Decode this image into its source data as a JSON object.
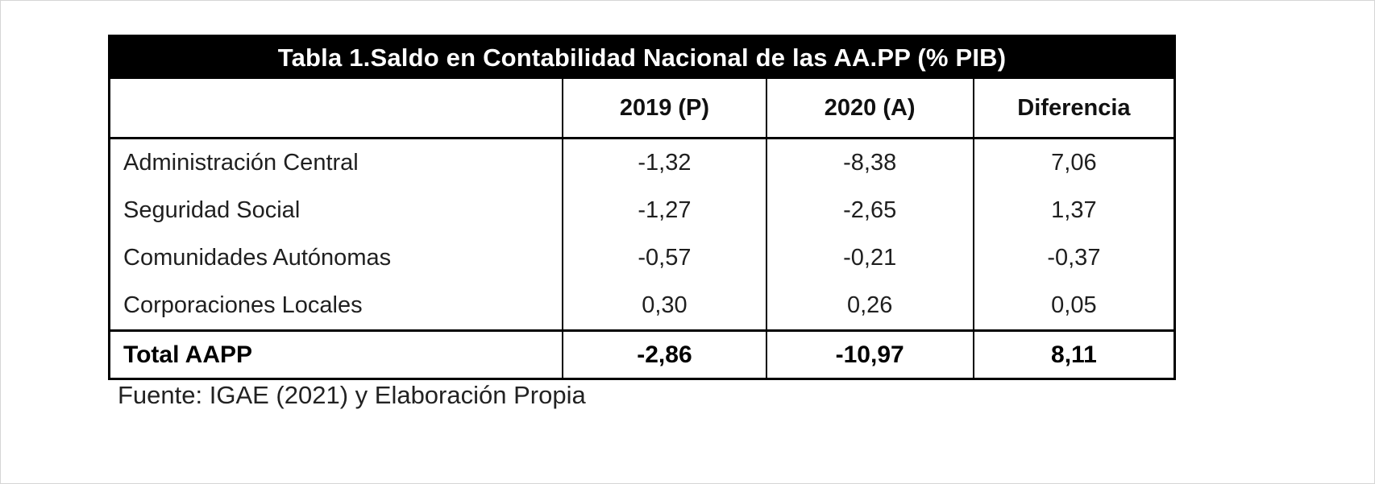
{
  "table": {
    "title": "Tabla 1.Saldo en Contabilidad Nacional de las AA.PP (% PIB)",
    "columns": [
      "",
      "2019 (P)",
      "2020 (A)",
      "Diferencia"
    ],
    "rows": [
      {
        "label": "Administración Central",
        "values": [
          "-1,32",
          "-8,38",
          "7,06"
        ]
      },
      {
        "label": "Seguridad Social",
        "values": [
          "-1,27",
          "-2,65",
          "1,37"
        ]
      },
      {
        "label": "Comunidades Autónomas",
        "values": [
          "-0,57",
          "-0,21",
          "-0,37"
        ]
      },
      {
        "label": "Corporaciones Locales",
        "values": [
          "0,30",
          "0,26",
          "0,05"
        ]
      }
    ],
    "total": {
      "label": "Total AAPP",
      "values": [
        "-2,86",
        "-10,97",
        "8,11"
      ]
    },
    "source": "Fuente: IGAE (2021) y Elaboración Propia"
  },
  "colors": {
    "title_background": "#000000",
    "title_text": "#ffffff",
    "border": "#000000",
    "body_text": "#1f1f1f"
  }
}
